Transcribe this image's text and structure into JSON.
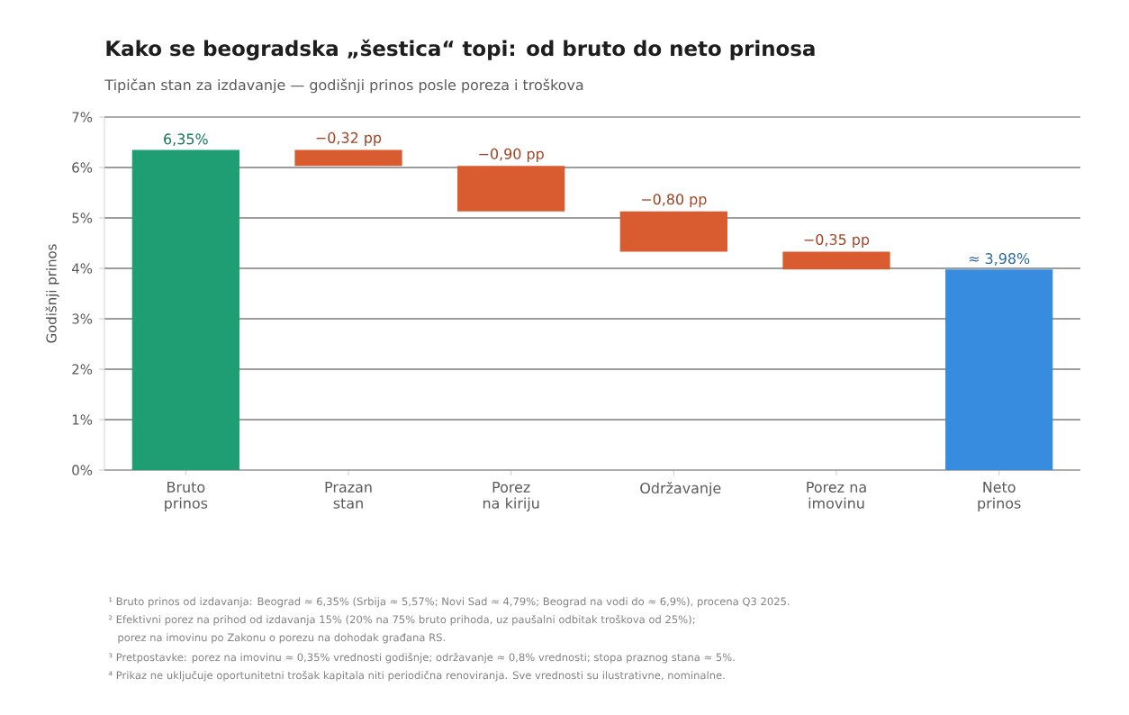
{
  "chart_data": {
    "type": "bar",
    "title": "Kako se beogradska „šestica“ topi: od bruto do neto prinosa",
    "subtitle": "Tipičan stan za izdavanje — godišnji prinos posle poreza i troškova",
    "ylabel": "Godišnji prinos",
    "categories": [
      "Bruto prinos",
      "Prazan stan",
      "Porez na kiriju",
      "Održavanje",
      "Porez na imovinu",
      "Neto prinos"
    ],
    "values": [
      6.35,
      -0.32,
      -0.9,
      -0.8,
      -0.35,
      3.98
    ],
    "base": [
      0,
      6.35,
      6.03,
      5.13,
      4.33,
      0
    ],
    "colors": [
      "#1f9e74",
      "#d95b30",
      "#d95b30",
      "#d95b30",
      "#d95b30",
      "#378ce0"
    ],
    "value_labels": [
      "6,35%",
      "−0,32 pp",
      "−0,90 pp",
      "−0,80 pp",
      "−0,35 pp",
      "≈ 3,98%"
    ],
    "ylim": [
      0,
      7
    ],
    "yticks": [
      {
        "value": 0,
        "label": "0%"
      },
      {
        "value": 1,
        "label": "1%"
      },
      {
        "value": 2,
        "label": "2%"
      },
      {
        "value": 3,
        "label": "3%"
      },
      {
        "value": 4,
        "label": "4%"
      },
      {
        "value": 5,
        "label": "5%"
      },
      {
        "value": 6,
        "label": "6%"
      },
      {
        "value": 7,
        "label": "7%"
      }
    ],
    "grid": "y",
    "annotations": [
      "¹ Bruto prinos od izdavanja: Beograd ≈ 6,35% (Srbija ≈ 5,57%; Novi Sad ≈ 4,79%; Beograd na vodi do ≈ 6,9%), procena Q3 2025.",
      "² Efektivni porez na prihod od izdavanja 15% (20% na 75% bruto prihoda, uz paušalni odbitak troškova od 25%);",
      "porez na imovinu po Zakonu o porezu na dohodak građana RS.",
      "³ Pretpostavke: porez na imovinu ≈ 0,35% vrednosti godišnje; održavanje ≈ 0,8% vrednosti; stopa praznog stana ≈ 5%.",
      "⁴ Prikaz ne uključuje oportunitetni trošak kapitala niti periodična renoviranja. Sve vrednosti su ilustrativne, nominalne."
    ]
  }
}
